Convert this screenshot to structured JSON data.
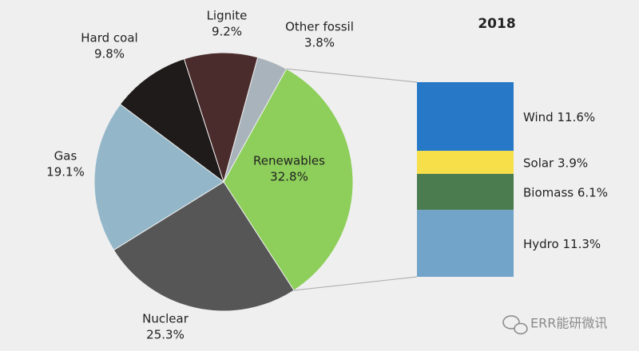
{
  "chart_data": {
    "type": "pie",
    "title": "2018",
    "categories": [
      "Renewables",
      "Nuclear",
      "Gas",
      "Hard coal",
      "Lignite",
      "Other fossil"
    ],
    "values": [
      32.8,
      25.3,
      19.1,
      9.8,
      9.2,
      3.8
    ],
    "value_labels": [
      "32.8%",
      "25.3%",
      "19.1%",
      "9.8%",
      "9.2%",
      "3.8%"
    ],
    "colors": [
      "#8dcf5a",
      "#565656",
      "#93b7c9",
      "#201b1b",
      "#4b2c2c",
      "#a9b3bb"
    ],
    "breakdown": {
      "type": "stacked-bar",
      "categories": [
        "Wind",
        "Solar",
        "Biomass",
        "Hydro"
      ],
      "values": [
        11.6,
        3.9,
        6.1,
        11.3
      ],
      "value_labels": [
        "11.6%",
        "3.9%",
        "6.1%",
        "11.3%"
      ],
      "colors": [
        "#2878c8",
        "#f7df4a",
        "#4a7c50",
        "#72a3c9"
      ]
    }
  },
  "watermark": "ERR能研微讯"
}
